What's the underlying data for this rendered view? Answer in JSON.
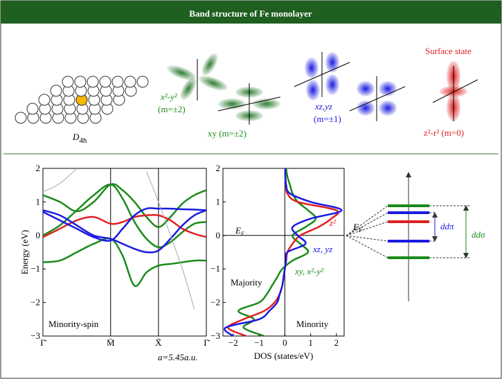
{
  "header": {
    "title": "Band structure of Fe monolayer"
  },
  "structures": {
    "lattice": {
      "main": "D",
      "sub": "4h"
    },
    "x2y2": {
      "name": "x²-y²",
      "m": "(m=±2)"
    },
    "xy": "xy (m=±2)",
    "xzyz": {
      "name": "xz,yz",
      "m": "(m=±1)"
    },
    "surface": {
      "title": "Surface state",
      "name": "z²-r² (m=0)"
    }
  },
  "chart_data": [
    {
      "type": "line",
      "ylabel": "Energy (eV)",
      "annotations": [
        "Minority-spin",
        "a=5.45a.u."
      ],
      "x": [
        0,
        0.177,
        0.354,
        0.53,
        0.707,
        0.832,
        0.957,
        1.082,
        1.207,
        1.332,
        1.457,
        1.582,
        1.707
      ],
      "xlim": [
        0,
        1.707
      ],
      "xticks": [
        {
          "value": 0,
          "label": "Γ̄"
        },
        {
          "value": 0.707,
          "label": "M̄"
        },
        {
          "value": 1.207,
          "label": "X̄"
        },
        {
          "value": 1.707,
          "label": "Γ̄"
        }
      ],
      "ylim": [
        -3,
        2
      ],
      "yticks": [
        {
          "value": -3,
          "label": "−3"
        },
        {
          "value": -2,
          "label": "−2"
        },
        {
          "value": -1,
          "label": "−1"
        },
        0,
        1,
        2
      ],
      "series": [
        {
          "color": "#1a8a1a",
          "values": [
            1.2,
            1.0,
            0.72,
            1.0,
            1.52,
            1.35,
            1.0,
            0.55,
            0.25,
            0.55,
            0.95,
            1.2,
            1.35
          ]
        },
        {
          "color": "#1a8a1a",
          "values": [
            0.0,
            0.3,
            0.75,
            1.2,
            1.52,
            1.1,
            0.4,
            -0.1,
            -0.35,
            -0.2,
            0.1,
            0.35,
            0.4
          ]
        },
        {
          "color": "#1a8a1a",
          "values": [
            -0.8,
            -0.75,
            -0.5,
            -0.25,
            -0.1,
            -0.6,
            -1.5,
            -1.1,
            -0.9,
            -0.85,
            -0.8,
            -0.75,
            -0.75
          ]
        },
        {
          "color": "#e02020",
          "values": [
            -0.05,
            0.2,
            0.45,
            0.55,
            0.35,
            0.4,
            0.55,
            0.6,
            0.6,
            0.45,
            0.2,
            0.05,
            -0.05
          ]
        },
        {
          "color": "#1a1ae0",
          "values": [
            0.75,
            0.6,
            0.3,
            0.0,
            -0.1,
            -0.25,
            -0.4,
            -0.5,
            -0.45,
            -0.1,
            0.3,
            0.6,
            0.75
          ]
        },
        {
          "color": "#1a1ae0",
          "values": [
            0.7,
            0.45,
            0.2,
            -0.05,
            -0.15,
            0.2,
            0.6,
            0.8,
            0.8,
            0.8,
            0.78,
            0.77,
            0.75
          ]
        },
        {
          "color": "#aaaaaa",
          "values": [
            1.3,
            1.55,
            2.0,
            null,
            null,
            null,
            null,
            null,
            null,
            null,
            null,
            null,
            null
          ]
        },
        {
          "color": "#aaaaaa",
          "values": [
            null,
            null,
            null,
            null,
            null,
            null,
            null,
            1.9,
            1.0,
            0.0,
            -1.0,
            -2.2,
            null
          ]
        }
      ]
    },
    {
      "type": "line",
      "xlabel": "DOS (states/eV)",
      "annotations": [
        "Majority",
        "Minority"
      ],
      "fermi": {
        "main": "E",
        "sub": "F"
      },
      "y": [
        -3,
        -2.75,
        -2.5,
        -2.25,
        -2,
        -1.75,
        -1.5,
        -1.25,
        -1,
        -0.75,
        -0.5,
        -0.25,
        0,
        0.25,
        0.5,
        0.75,
        1,
        1.25,
        1.5,
        1.75,
        2
      ],
      "xlim": [
        -2.4,
        2.3
      ],
      "xticks": [
        {
          "value": -2,
          "label": "−2"
        },
        {
          "value": -1,
          "label": "−1"
        },
        0,
        1,
        2
      ],
      "ylim": [
        -3,
        2
      ],
      "yticks": [
        {
          "value": -3,
          "label": "−3"
        },
        {
          "value": -2,
          "label": "−2"
        },
        {
          "value": -1,
          "label": "−1"
        },
        0,
        1,
        2
      ],
      "series": [
        {
          "name": "xy, x²-y²",
          "color": "#1a8a1a",
          "values": [
            -0.8,
            -1.6,
            -1.2,
            -1.8,
            -1.0,
            -0.7,
            -0.5,
            -0.3,
            -0.1,
            0.3,
            0.9,
            0.6,
            0.3,
            0.8,
            1.2,
            0.9,
            0.5,
            0.3,
            0.2,
            0.1,
            0.05
          ]
        },
        {
          "name": "z²",
          "color": "#e02020",
          "values": [
            -1.5,
            -2.2,
            -1.6,
            -0.8,
            -0.4,
            -0.2,
            -0.1,
            -0.05,
            0.0,
            0.05,
            0.1,
            0.3,
            0.6,
            1.3,
            1.8,
            2.0,
            0.5,
            0.1,
            0.05,
            0.02,
            0.02
          ]
        },
        {
          "name": "xz, yz",
          "color": "#1a1ae0",
          "values": [
            -2.0,
            -2.3,
            -1.0,
            -0.6,
            -0.3,
            -0.2,
            -0.1,
            -0.05,
            0.0,
            0.05,
            0.1,
            0.8,
            0.5,
            0.3,
            1.0,
            2.2,
            1.0,
            0.2,
            0.05,
            0.02,
            0.02
          ]
        }
      ]
    }
  ],
  "levels": {
    "fermi": {
      "main": "E",
      "sub": "F"
    },
    "ddpi": "ddπ",
    "ddsigma": "ddσ"
  }
}
